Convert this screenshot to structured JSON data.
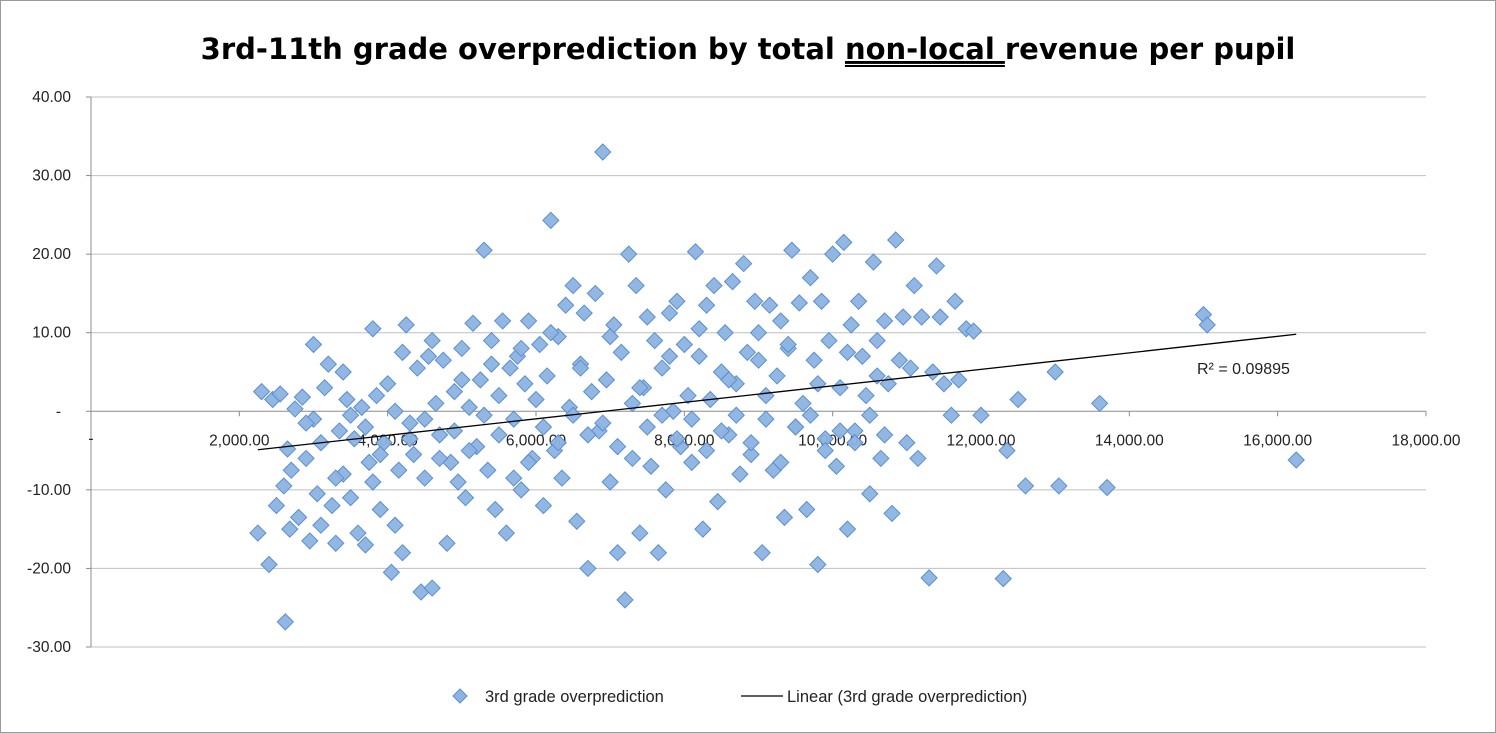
{
  "chart_data": {
    "type": "scatter",
    "title_parts": [
      "3rd-11th grade overprediction by total ",
      "non-local ",
      "revenue per pupil"
    ],
    "xlim": [
      0,
      18000
    ],
    "ylim": [
      -30,
      40
    ],
    "x_ticks": [
      2000,
      4000,
      6000,
      8000,
      10000,
      12000,
      14000,
      16000,
      18000
    ],
    "y_ticks": [
      -30,
      -20,
      -10,
      0,
      10,
      20,
      30,
      40
    ],
    "x_tick_labels": [
      "2,000.00",
      "4,000.00",
      "6,000.00",
      "8,000.00",
      "10,000.00",
      "12,000.00",
      "14,000.00",
      "16,000.00",
      "18,000.00"
    ],
    "y_tick_labels": [
      "-30.00",
      "-20.00",
      "-10.00",
      "-",
      "10.00",
      "20.00",
      "30.00",
      "40.00"
    ],
    "x_origin_label": "-",
    "grid": "horizontal",
    "series": [
      {
        "name": "3rd grade overprediction",
        "marker": "diamond",
        "color": "#8db3e2",
        "edge_color": "#5b8fd0",
        "points": [
          [
            2250,
            -15.5
          ],
          [
            2300,
            2.5
          ],
          [
            2400,
            -19.5
          ],
          [
            2450,
            1.5
          ],
          [
            2500,
            -12.0
          ],
          [
            2550,
            2.2
          ],
          [
            2600,
            -9.5
          ],
          [
            2650,
            -4.8
          ],
          [
            2700,
            -7.5
          ],
          [
            2750,
            0.3
          ],
          [
            2620,
            -26.8
          ],
          [
            2680,
            -15.0
          ],
          [
            2800,
            -13.5
          ],
          [
            2850,
            1.8
          ],
          [
            2900,
            -6.0
          ],
          [
            2950,
            -16.5
          ],
          [
            3000,
            -1.0
          ],
          [
            3050,
            -10.5
          ],
          [
            3100,
            -14.5
          ],
          [
            3150,
            3.0
          ],
          [
            3200,
            6.0
          ],
          [
            3250,
            -12.0
          ],
          [
            3300,
            -16.8
          ],
          [
            3350,
            -2.5
          ],
          [
            3400,
            -8.0
          ],
          [
            3450,
            1.5
          ],
          [
            3500,
            -11.0
          ],
          [
            3550,
            -3.5
          ],
          [
            3600,
            -15.5
          ],
          [
            3650,
            0.5
          ],
          [
            3700,
            -17.0
          ],
          [
            3750,
            -6.5
          ],
          [
            3800,
            -9.0
          ],
          [
            3850,
            2.0
          ],
          [
            3900,
            -12.5
          ],
          [
            3950,
            -4.0
          ],
          [
            4000,
            3.5
          ],
          [
            4050,
            -20.5
          ],
          [
            4100,
            -14.5
          ],
          [
            4150,
            -7.5
          ],
          [
            4200,
            -18.0
          ],
          [
            4250,
            11.0
          ],
          [
            4300,
            -1.5
          ],
          [
            4350,
            -5.5
          ],
          [
            4400,
            5.5
          ],
          [
            4450,
            -23.0
          ],
          [
            4500,
            -8.5
          ],
          [
            4550,
            7.0
          ],
          [
            4600,
            -22.5
          ],
          [
            4650,
            1.0
          ],
          [
            4700,
            -3.0
          ],
          [
            4750,
            6.5
          ],
          [
            4800,
            -16.8
          ],
          [
            4850,
            -6.5
          ],
          [
            4900,
            2.5
          ],
          [
            4950,
            -9.0
          ],
          [
            5000,
            8.0
          ],
          [
            5050,
            -11.0
          ],
          [
            5100,
            0.5
          ],
          [
            5150,
            11.2
          ],
          [
            5200,
            -4.5
          ],
          [
            5250,
            4.0
          ],
          [
            5300,
            20.5
          ],
          [
            5350,
            -7.5
          ],
          [
            5400,
            9.0
          ],
          [
            5450,
            -12.5
          ],
          [
            5500,
            2.0
          ],
          [
            5550,
            11.5
          ],
          [
            5600,
            -15.5
          ],
          [
            5650,
            5.5
          ],
          [
            5700,
            -1.0
          ],
          [
            5750,
            7.0
          ],
          [
            5800,
            -10.0
          ],
          [
            5850,
            3.5
          ],
          [
            5900,
            11.5
          ],
          [
            5950,
            -6.0
          ],
          [
            6000,
            1.5
          ],
          [
            6050,
            8.5
          ],
          [
            6100,
            -12.0
          ],
          [
            6150,
            4.5
          ],
          [
            6200,
            24.3
          ],
          [
            6250,
            -5.0
          ],
          [
            6300,
            9.5
          ],
          [
            6350,
            -8.5
          ],
          [
            6400,
            13.5
          ],
          [
            6450,
            0.5
          ],
          [
            6500,
            16.0
          ],
          [
            6550,
            -14.0
          ],
          [
            6600,
            6.0
          ],
          [
            6650,
            12.5
          ],
          [
            6700,
            -20.0
          ],
          [
            6750,
            2.5
          ],
          [
            6800,
            15.0
          ],
          [
            6850,
            -2.5
          ],
          [
            6900,
            33.0
          ],
          [
            6950,
            4.0
          ],
          [
            7000,
            -9.0
          ],
          [
            7050,
            11.0
          ],
          [
            7100,
            -18.0
          ],
          [
            7150,
            7.5
          ],
          [
            7200,
            -24.0
          ],
          [
            7250,
            20.0
          ],
          [
            7300,
            1.0
          ],
          [
            7350,
            16.0
          ],
          [
            7400,
            -15.5
          ],
          [
            7450,
            3.0
          ],
          [
            7500,
            12.0
          ],
          [
            7550,
            -7.0
          ],
          [
            7600,
            9.0
          ],
          [
            7650,
            -18.0
          ],
          [
            7700,
            5.5
          ],
          [
            7750,
            -10.0
          ],
          [
            7800,
            12.5
          ],
          [
            7850,
            0.0
          ],
          [
            7900,
            14.0
          ],
          [
            7950,
            -4.5
          ],
          [
            8000,
            8.5
          ],
          [
            8050,
            2.0
          ],
          [
            8100,
            -6.5
          ],
          [
            8150,
            20.3
          ],
          [
            8200,
            7.0
          ],
          [
            8250,
            -15.0
          ],
          [
            8300,
            13.5
          ],
          [
            8350,
            1.5
          ],
          [
            8400,
            16.0
          ],
          [
            8450,
            -11.5
          ],
          [
            8500,
            5.0
          ],
          [
            8550,
            10.0
          ],
          [
            8600,
            -3.0
          ],
          [
            8650,
            16.5
          ],
          [
            8700,
            3.5
          ],
          [
            8750,
            -8.0
          ],
          [
            8800,
            18.8
          ],
          [
            8850,
            7.5
          ],
          [
            8900,
            -5.5
          ],
          [
            8950,
            14.0
          ],
          [
            9000,
            10.0
          ],
          [
            9050,
            -18.0
          ],
          [
            9100,
            2.0
          ],
          [
            9150,
            13.5
          ],
          [
            9200,
            -7.5
          ],
          [
            9250,
            4.5
          ],
          [
            9300,
            11.5
          ],
          [
            9350,
            -13.5
          ],
          [
            9400,
            8.0
          ],
          [
            9450,
            20.5
          ],
          [
            9500,
            -2.0
          ],
          [
            9550,
            13.8
          ],
          [
            9600,
            1.0
          ],
          [
            9650,
            -12.5
          ],
          [
            9700,
            17.0
          ],
          [
            9750,
            6.5
          ],
          [
            9800,
            -19.5
          ],
          [
            9850,
            14.0
          ],
          [
            9900,
            -3.5
          ],
          [
            9950,
            9.0
          ],
          [
            10000,
            20.0
          ],
          [
            10050,
            -7.0
          ],
          [
            10100,
            3.0
          ],
          [
            10150,
            21.5
          ],
          [
            10200,
            -15.0
          ],
          [
            10250,
            11.0
          ],
          [
            10300,
            -2.5
          ],
          [
            10350,
            14.0
          ],
          [
            10400,
            7.0
          ],
          [
            10450,
            2.0
          ],
          [
            10500,
            -10.5
          ],
          [
            10550,
            19.0
          ],
          [
            10600,
            4.5
          ],
          [
            10650,
            -6.0
          ],
          [
            10700,
            11.5
          ],
          [
            10750,
            3.5
          ],
          [
            10800,
            -13.0
          ],
          [
            10850,
            21.8
          ],
          [
            10900,
            6.5
          ],
          [
            10950,
            12.0
          ],
          [
            11000,
            -4.0
          ],
          [
            11050,
            5.5
          ],
          [
            11100,
            16.0
          ],
          [
            11150,
            -6.0
          ],
          [
            11200,
            12.0
          ],
          [
            11300,
            -21.2
          ],
          [
            11350,
            5.0
          ],
          [
            11400,
            18.5
          ],
          [
            11450,
            12.0
          ],
          [
            11500,
            3.5
          ],
          [
            11600,
            -0.5
          ],
          [
            11650,
            14.0
          ],
          [
            11700,
            4.0
          ],
          [
            11800,
            10.5
          ],
          [
            11900,
            10.2
          ],
          [
            12000,
            -0.5
          ],
          [
            12300,
            -21.3
          ],
          [
            12350,
            -5.0
          ],
          [
            12500,
            1.5
          ],
          [
            12600,
            -9.5
          ],
          [
            13000,
            5.0
          ],
          [
            13050,
            -9.5
          ],
          [
            13600,
            1.0
          ],
          [
            13700,
            -9.7
          ],
          [
            15000,
            12.3
          ],
          [
            15050,
            11.0
          ],
          [
            16250,
            -6.2
          ],
          [
            2900,
            -1.5
          ],
          [
            3100,
            -4.0
          ],
          [
            3300,
            -8.5
          ],
          [
            3500,
            -0.5
          ],
          [
            3700,
            -2.0
          ],
          [
            3900,
            -5.5
          ],
          [
            4100,
            0.0
          ],
          [
            4300,
            -3.5
          ],
          [
            4500,
            -1.0
          ],
          [
            4700,
            -6.0
          ],
          [
            4900,
            -2.5
          ],
          [
            5100,
            -5.0
          ],
          [
            5300,
            -0.5
          ],
          [
            5500,
            -3.0
          ],
          [
            5700,
            -8.5
          ],
          [
            5900,
            -6.5
          ],
          [
            6100,
            -2.0
          ],
          [
            6300,
            -4.0
          ],
          [
            6500,
            -0.5
          ],
          [
            6700,
            -3.0
          ],
          [
            6900,
            -1.5
          ],
          [
            7100,
            -4.5
          ],
          [
            7300,
            -6.0
          ],
          [
            7500,
            -2.0
          ],
          [
            7700,
            -0.5
          ],
          [
            7900,
            -3.5
          ],
          [
            8100,
            -1.0
          ],
          [
            8300,
            -5.0
          ],
          [
            8500,
            -2.5
          ],
          [
            8700,
            -0.5
          ],
          [
            8900,
            -4.0
          ],
          [
            9100,
            -1.0
          ],
          [
            9300,
            -6.5
          ],
          [
            9500,
            -2.0
          ],
          [
            9700,
            -0.5
          ],
          [
            9900,
            -5.0
          ],
          [
            10100,
            -2.5
          ],
          [
            10300,
            -4.0
          ],
          [
            10500,
            -0.5
          ],
          [
            10700,
            -3.0
          ],
          [
            3000,
            8.5
          ],
          [
            3400,
            5.0
          ],
          [
            3800,
            10.5
          ],
          [
            4200,
            7.5
          ],
          [
            4600,
            9.0
          ],
          [
            5000,
            4.0
          ],
          [
            5400,
            6.0
          ],
          [
            5800,
            8.0
          ],
          [
            6200,
            10.0
          ],
          [
            6600,
            5.5
          ],
          [
            7000,
            9.5
          ],
          [
            7400,
            3.0
          ],
          [
            7800,
            7.0
          ],
          [
            8200,
            10.5
          ],
          [
            8600,
            4.0
          ],
          [
            9000,
            6.5
          ],
          [
            9400,
            8.5
          ],
          [
            9800,
            3.5
          ],
          [
            10200,
            7.5
          ],
          [
            10600,
            9.0
          ]
        ]
      }
    ],
    "trendline": {
      "name": "Linear (3rd grade overprediction)",
      "type": "linear",
      "x_range": [
        2250,
        16250
      ],
      "y_at_start": -4.9,
      "y_at_end": 9.8,
      "color": "#000000",
      "r2_label": "R² = 0.09895"
    },
    "legend": {
      "position": "bottom",
      "items": [
        {
          "label": "3rd grade overprediction",
          "symbol": "diamond"
        },
        {
          "label": "Linear (3rd grade overprediction)",
          "symbol": "line"
        }
      ]
    }
  }
}
